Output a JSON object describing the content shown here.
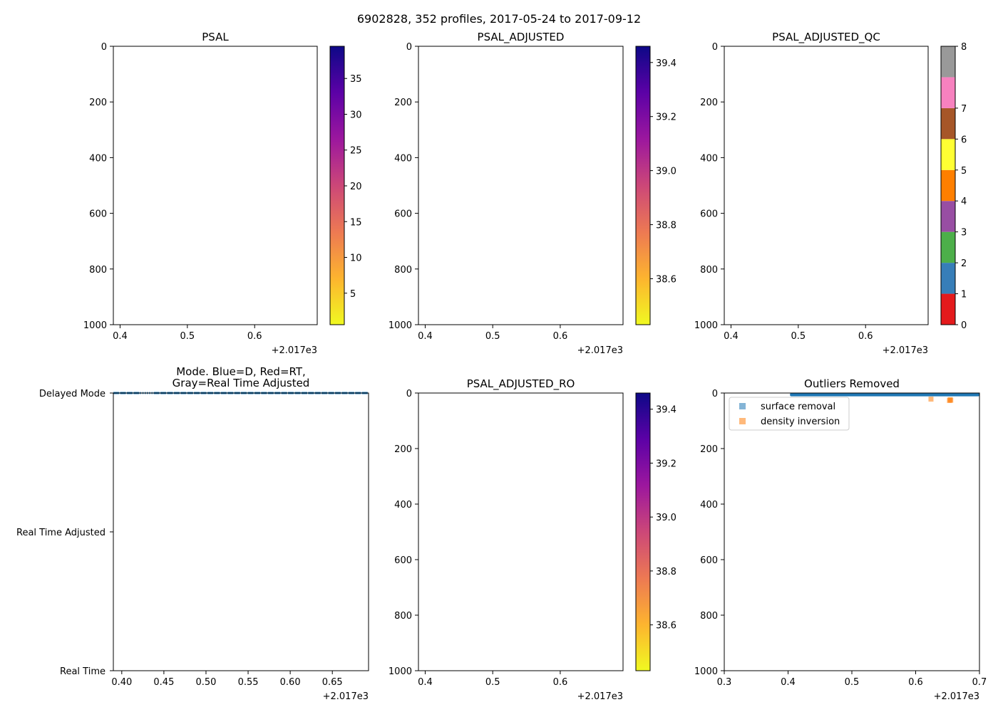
{
  "suptitle": "6902828, 352 profiles, 2017-05-24 to 2017-09-12",
  "chart_data": [
    {
      "id": "psal",
      "type": "heatmap",
      "title": "PSAL",
      "xlim": [
        0.39,
        0.693
      ],
      "xticks": [
        0.4,
        0.5,
        0.6
      ],
      "xtick_labels": [
        "0.4",
        "0.5",
        "0.6"
      ],
      "x_offset_label": "+2.017e3",
      "ylim": [
        1000,
        0
      ],
      "yticks": [
        0,
        200,
        400,
        600,
        800,
        1000
      ],
      "ytick_labels": [
        "0",
        "200",
        "400",
        "600",
        "800",
        "1000"
      ],
      "values": [],
      "colorbar": {
        "colormap": "plasma_r",
        "range": [
          0.6,
          39.5
        ],
        "ticks": [
          5,
          10,
          15,
          20,
          25,
          30,
          35
        ],
        "tick_labels": [
          "5",
          "10",
          "15",
          "20",
          "25",
          "30",
          "35"
        ]
      }
    },
    {
      "id": "psal-adjusted",
      "type": "heatmap",
      "title": "PSAL_ADJUSTED",
      "xlim": [
        0.39,
        0.693
      ],
      "xticks": [
        0.4,
        0.5,
        0.6
      ],
      "xtick_labels": [
        "0.4",
        "0.5",
        "0.6"
      ],
      "x_offset_label": "+2.017e3",
      "ylim": [
        1000,
        0
      ],
      "yticks": [
        0,
        200,
        400,
        600,
        800,
        1000
      ],
      "ytick_labels": [
        "0",
        "200",
        "400",
        "600",
        "800",
        "1000"
      ],
      "values": [],
      "colorbar": {
        "colormap": "plasma_r",
        "range": [
          38.43,
          39.46
        ],
        "ticks": [
          38.6,
          38.8,
          39.0,
          39.2,
          39.4
        ],
        "tick_labels": [
          "38.6",
          "38.8",
          "39.0",
          "39.2",
          "39.4"
        ]
      }
    },
    {
      "id": "psal-adjusted-qc",
      "type": "heatmap",
      "title": "PSAL_ADJUSTED_QC",
      "xlim": [
        0.39,
        0.693
      ],
      "xticks": [
        0.4,
        0.5,
        0.6
      ],
      "xtick_labels": [
        "0.4",
        "0.5",
        "0.6"
      ],
      "x_offset_label": "+2.017e3",
      "ylim": [
        1000,
        0
      ],
      "yticks": [
        0,
        200,
        400,
        600,
        800,
        1000
      ],
      "ytick_labels": [
        "0",
        "200",
        "400",
        "600",
        "800",
        "1000"
      ],
      "values": [],
      "colorbar": {
        "colormap": "discrete",
        "range": [
          0,
          8
        ],
        "ticks": [
          0,
          1,
          2,
          3,
          4,
          5,
          6,
          7,
          8
        ],
        "tick_labels": [
          "0",
          "1",
          "2",
          "3",
          "4",
          "5",
          "6",
          "7",
          "8"
        ],
        "bins": [
          {
            "from": 0,
            "to": 1,
            "color": "#e41a1c"
          },
          {
            "from": 1,
            "to": 2,
            "color": "#377eb8"
          },
          {
            "from": 2,
            "to": 3,
            "color": "#4daf4a"
          },
          {
            "from": 3,
            "to": 4,
            "color": "#984ea3"
          },
          {
            "from": 4,
            "to": 5,
            "color": "#ff7f00"
          },
          {
            "from": 5,
            "to": 6,
            "color": "#ffff33"
          },
          {
            "from": 6,
            "to": 7,
            "color": "#a65628"
          },
          {
            "from": 7,
            "to": 8,
            "color": "#f781bf"
          },
          {
            "from": 8,
            "to": 9,
            "color": "#999999"
          }
        ]
      }
    },
    {
      "id": "mode",
      "type": "scatter",
      "title": "Mode. Blue=D, Red=RT,",
      "title_line2": "Gray=Real Time Adjusted",
      "xlim": [
        0.39,
        0.693
      ],
      "xticks": [
        0.4,
        0.45,
        0.5,
        0.55,
        0.6,
        0.65
      ],
      "xtick_labels": [
        "0.40",
        "0.45",
        "0.50",
        "0.55",
        "0.60",
        "0.65"
      ],
      "x_offset_label": "+2.017e3",
      "ylim": [
        0,
        2
      ],
      "yticks": [
        2,
        1,
        0
      ],
      "ytick_labels": [
        "Delayed Mode",
        "Real Time Adjusted",
        "Real Time"
      ],
      "marker_color": "#1f77b4",
      "series": [
        {
          "name": "Delayed Mode",
          "y": 2,
          "x_start": 0.39,
          "x_end": 0.693,
          "sparse_segment": [
            0.416,
            0.437
          ],
          "gap_segments": 38
        }
      ]
    },
    {
      "id": "psal-adjusted-ro",
      "type": "heatmap",
      "title": "PSAL_ADJUSTED_RO",
      "xlim": [
        0.39,
        0.693
      ],
      "xticks": [
        0.4,
        0.5,
        0.6
      ],
      "xtick_labels": [
        "0.4",
        "0.5",
        "0.6"
      ],
      "x_offset_label": "+2.017e3",
      "ylim": [
        1000,
        0
      ],
      "yticks": [
        0,
        200,
        400,
        600,
        800,
        1000
      ],
      "ytick_labels": [
        "0",
        "200",
        "400",
        "600",
        "800",
        "1000"
      ],
      "values": [],
      "colorbar": {
        "colormap": "plasma_r",
        "range": [
          38.43,
          39.46
        ],
        "ticks": [
          38.6,
          38.8,
          39.0,
          39.2,
          39.4
        ],
        "tick_labels": [
          "38.6",
          "38.8",
          "39.0",
          "39.2",
          "39.4"
        ]
      }
    },
    {
      "id": "outliers",
      "type": "scatter",
      "title": "Outliers Removed",
      "xlim": [
        0.3,
        0.7
      ],
      "xticks": [
        0.3,
        0.4,
        0.5,
        0.6,
        0.7
      ],
      "xtick_labels": [
        "0.3",
        "0.4",
        "0.5",
        "0.6",
        "0.7"
      ],
      "x_offset_label": "+2.017e3",
      "ylim": [
        1000,
        0
      ],
      "yticks": [
        0,
        200,
        400,
        600,
        800,
        1000
      ],
      "ytick_labels": [
        "0",
        "200",
        "400",
        "600",
        "800",
        "1000"
      ],
      "legend_position": "upper-left",
      "series": [
        {
          "name": "surface removal",
          "color": "#1f77b4",
          "band": {
            "x_start": 0.403,
            "x_end": 0.7,
            "y_min": 0,
            "y_max": 12
          }
        },
        {
          "name": "density inversion",
          "color": "#ff7f0e",
          "points": [
            [
              0.624,
              22
            ],
            [
              0.654,
              24
            ],
            [
              0.655,
              26
            ],
            [
              0.653,
              27
            ]
          ]
        }
      ]
    }
  ]
}
